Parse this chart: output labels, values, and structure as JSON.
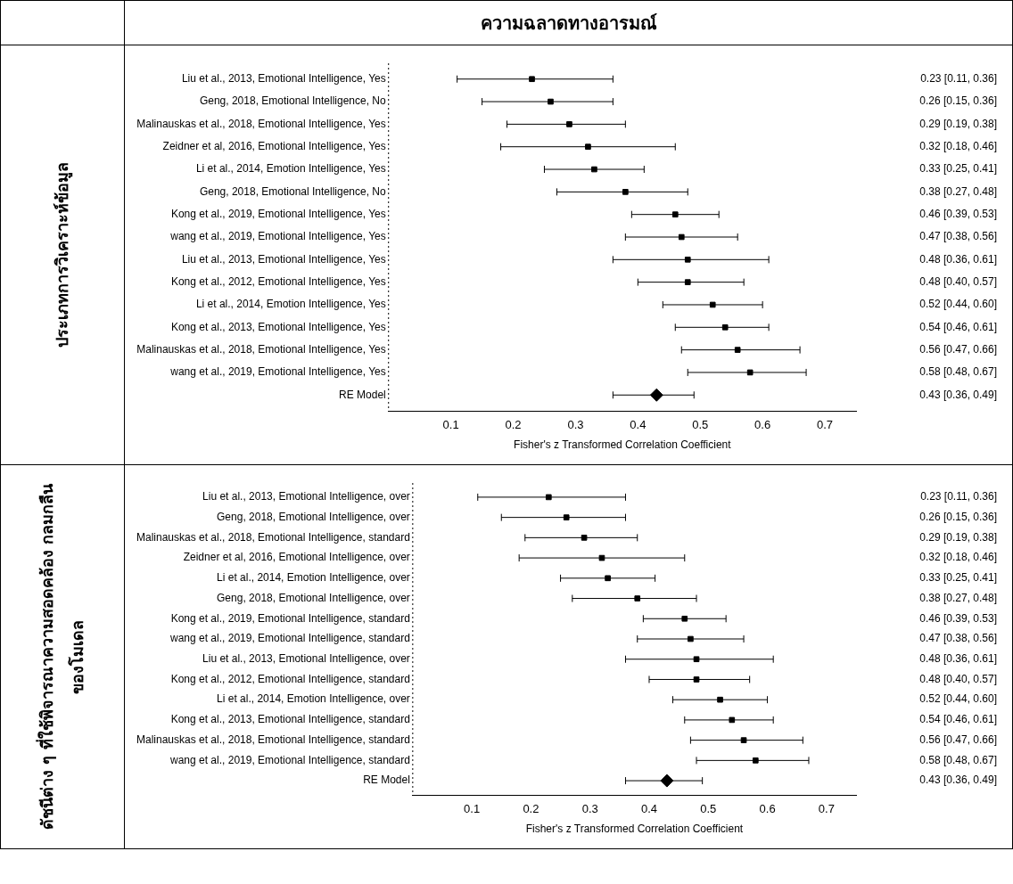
{
  "chart_data": [
    {
      "type": "scatter",
      "orientation": "horizontal",
      "title": "ความฉลาดทางอารมณ์",
      "ylabel": "ประเภทการวิเคราะห์ข้อมูล",
      "xlabel": "Fisher's z Transformed Correlation Coefficient",
      "categories": [
        "Liu et al., 2013, Emotional Intelligence, Yes",
        "Geng, 2018, Emotional Intelligence, No",
        "Malinauskas et al., 2018, Emotional Intelligence, Yes",
        "Zeidner et al, 2016, Emotional Intelligence, Yes",
        "Li et al., 2014, Emotion Intelligence, Yes",
        "Geng, 2018, Emotional Intelligence, No",
        "Kong et al., 2019, Emotional Intelligence, Yes",
        "wang et al., 2019, Emotional Intelligence, Yes",
        "Liu et al., 2013, Emotional Intelligence, Yes",
        "Kong et al., 2012, Emotional Intelligence, Yes",
        "Li et al., 2014, Emotion Intelligence, Yes",
        "Kong et al., 2013, Emotional Intelligence, Yes",
        "Malinauskas et al., 2018, Emotional Intelligence, Yes",
        "wang et al., 2019, Emotional Intelligence, Yes",
        "RE Model"
      ],
      "series": [
        {
          "type": "scatter",
          "marker": "square",
          "color": "#000000",
          "values": [
            0.23,
            0.26,
            0.29,
            0.32,
            0.33,
            0.38,
            0.46,
            0.47,
            0.48,
            0.48,
            0.52,
            0.54,
            0.56,
            0.58,
            null
          ],
          "errors": [
            [
              0.11,
              0.36
            ],
            [
              0.15,
              0.36
            ],
            [
              0.19,
              0.38
            ],
            [
              0.18,
              0.46
            ],
            [
              0.25,
              0.41
            ],
            [
              0.27,
              0.48
            ],
            [
              0.39,
              0.53
            ],
            [
              0.38,
              0.56
            ],
            [
              0.36,
              0.61
            ],
            [
              0.4,
              0.57
            ],
            [
              0.44,
              0.6
            ],
            [
              0.46,
              0.61
            ],
            [
              0.47,
              0.66
            ],
            [
              0.48,
              0.67
            ],
            null
          ],
          "value_labels": [
            "0.23 [0.11, 0.36]",
            "0.26 [0.15, 0.36]",
            "0.29 [0.19, 0.38]",
            "0.32 [0.18, 0.46]",
            "0.33 [0.25, 0.41]",
            "0.38 [0.27, 0.48]",
            "0.46 [0.39, 0.53]",
            "0.47 [0.38, 0.56]",
            "0.48 [0.36, 0.61]",
            "0.48 [0.40, 0.57]",
            "0.52 [0.44, 0.60]",
            "0.54 [0.46, 0.61]",
            "0.56 [0.47, 0.66]",
            "0.58 [0.48, 0.67]",
            null
          ]
        },
        {
          "type": "scatter",
          "marker": "diamond",
          "color": "#000000",
          "values": [
            null,
            null,
            null,
            null,
            null,
            null,
            null,
            null,
            null,
            null,
            null,
            null,
            null,
            null,
            0.43
          ],
          "errors": [
            null,
            null,
            null,
            null,
            null,
            null,
            null,
            null,
            null,
            null,
            null,
            null,
            null,
            null,
            [
              0.36,
              0.49
            ]
          ]
        }
      ],
      "xlim": [
        0,
        0.75
      ],
      "xticks": [
        0.1,
        0.2,
        0.3,
        0.4,
        0.5,
        0.6,
        0.7
      ],
      "grid": false,
      "legend": false,
      "annotations": [
        "0.43 [0.36, 0.49]"
      ],
      "ref_lines": [
        {
          "axis": "x",
          "value": 0,
          "line_style": "dotted",
          "color": "#000000"
        }
      ]
    },
    {
      "type": "scatter",
      "orientation": "horizontal",
      "ylabel": "ดัชนีต่าง ๆ ที่ใช้พิจารณาความสอดคล้อง กลมกลืนของโมเดล",
      "xlabel": "Fisher's z Transformed Correlation Coefficient",
      "categories": [
        "Liu et al., 2013, Emotional Intelligence, over",
        "Geng, 2018, Emotional Intelligence, over",
        "Malinauskas et al., 2018, Emotional Intelligence, standard",
        "Zeidner et al, 2016, Emotional Intelligence, over",
        "Li et al., 2014, Emotion Intelligence, over",
        "Geng, 2018, Emotional Intelligence, over",
        "Kong et al., 2019, Emotional Intelligence, standard",
        "wang et al., 2019, Emotional Intelligence, standard",
        "Liu et al., 2013, Emotional Intelligence, over",
        "Kong et al., 2012, Emotional Intelligence, standard",
        "Li et al., 2014, Emotion Intelligence, over",
        "Kong et al., 2013, Emotional Intelligence, standard",
        "Malinauskas et al., 2018, Emotional Intelligence, standard",
        "wang et al., 2019, Emotional Intelligence, standard",
        "RE Model"
      ],
      "series": [
        {
          "type": "scatter",
          "marker": "square",
          "color": "#000000",
          "values": [
            0.23,
            0.26,
            0.29,
            0.32,
            0.33,
            0.38,
            0.46,
            0.47,
            0.48,
            0.48,
            0.52,
            0.54,
            0.56,
            0.58,
            null
          ],
          "errors": [
            [
              0.11,
              0.36
            ],
            [
              0.15,
              0.36
            ],
            [
              0.19,
              0.38
            ],
            [
              0.18,
              0.46
            ],
            [
              0.25,
              0.41
            ],
            [
              0.27,
              0.48
            ],
            [
              0.39,
              0.53
            ],
            [
              0.38,
              0.56
            ],
            [
              0.36,
              0.61
            ],
            [
              0.4,
              0.57
            ],
            [
              0.44,
              0.6
            ],
            [
              0.46,
              0.61
            ],
            [
              0.47,
              0.66
            ],
            [
              0.48,
              0.67
            ],
            null
          ],
          "value_labels": [
            "0.23 [0.11, 0.36]",
            "0.26 [0.15, 0.36]",
            "0.29 [0.19, 0.38]",
            "0.32 [0.18, 0.46]",
            "0.33 [0.25, 0.41]",
            "0.38 [0.27, 0.48]",
            "0.46 [0.39, 0.53]",
            "0.47 [0.38, 0.56]",
            "0.48 [0.36, 0.61]",
            "0.48 [0.40, 0.57]",
            "0.52 [0.44, 0.60]",
            "0.54 [0.46, 0.61]",
            "0.56 [0.47, 0.66]",
            "0.58 [0.48, 0.67]",
            null
          ]
        },
        {
          "type": "scatter",
          "marker": "diamond",
          "color": "#000000",
          "values": [
            null,
            null,
            null,
            null,
            null,
            null,
            null,
            null,
            null,
            null,
            null,
            null,
            null,
            null,
            0.43
          ],
          "errors": [
            null,
            null,
            null,
            null,
            null,
            null,
            null,
            null,
            null,
            null,
            null,
            null,
            null,
            null,
            [
              0.36,
              0.49
            ]
          ]
        }
      ],
      "xlim": [
        0,
        0.75
      ],
      "xticks": [
        0.1,
        0.2,
        0.3,
        0.4,
        0.5,
        0.6,
        0.7
      ],
      "grid": false,
      "legend": false,
      "annotations": [
        "0.43 [0.36, 0.49]"
      ],
      "ref_lines": [
        {
          "axis": "x",
          "value": 0,
          "line_style": "dotted",
          "color": "#000000"
        }
      ]
    }
  ]
}
